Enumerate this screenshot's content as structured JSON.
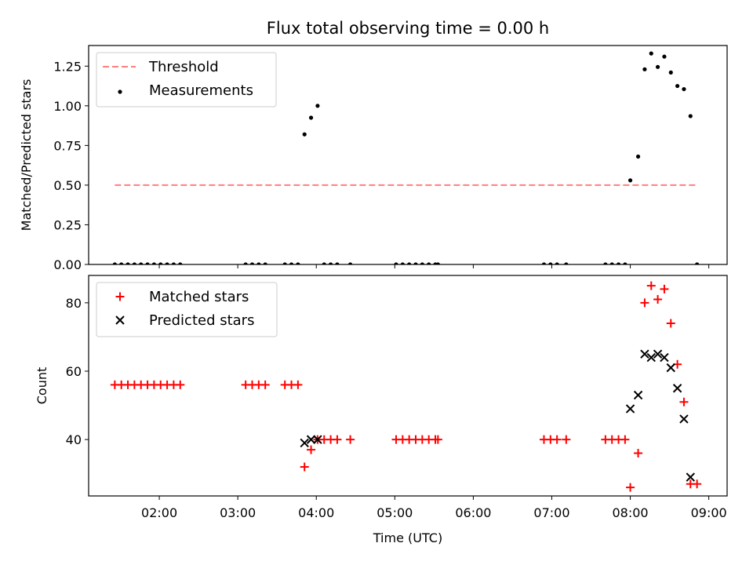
{
  "figure": {
    "title": "Flux total observing time = 0.00 h",
    "xlabel": "Time (UTC)"
  },
  "chart_data": [
    {
      "type": "scatter",
      "title": "Flux total observing time = 0.00 h",
      "ylabel": "Matched/Predicted stars",
      "xlim": [
        "01:06",
        "09:14"
      ],
      "ylim": [
        0,
        1.38
      ],
      "yticks": [
        0.0,
        0.25,
        0.5,
        0.75,
        1.0,
        1.25
      ],
      "ytick_labels": [
        "0.00",
        "0.25",
        "0.50",
        "0.75",
        "1.00",
        "1.25"
      ],
      "grid": false,
      "legend": {
        "position": "top-left",
        "entries": [
          "Threshold",
          "Measurements"
        ]
      },
      "series": [
        {
          "name": "Threshold",
          "kind": "dashed-line",
          "color": "#ff7f7f",
          "x": [
            "01:26",
            "08:50"
          ],
          "y": [
            0.5,
            0.5
          ]
        },
        {
          "name": "Measurements",
          "kind": "scatter",
          "color": "#000000",
          "x": [
            "01:26",
            "01:31",
            "01:36",
            "01:41",
            "01:46",
            "01:51",
            "01:56",
            "02:01",
            "02:06",
            "02:11",
            "02:16",
            "03:06",
            "03:11",
            "03:16",
            "03:21",
            "03:36",
            "03:41",
            "03:46",
            "03:51",
            "03:56",
            "04:01",
            "04:06",
            "04:11",
            "04:16",
            "04:26",
            "05:01",
            "05:06",
            "05:11",
            "05:16",
            "05:21",
            "05:26",
            "05:31",
            "05:33",
            "06:54",
            "06:59",
            "07:04",
            "07:11",
            "07:41",
            "07:46",
            "07:51",
            "07:56",
            "08:00",
            "08:06",
            "08:11",
            "08:16",
            "08:21",
            "08:26",
            "08:31",
            "08:36",
            "08:41",
            "08:46",
            "08:51"
          ],
          "y": [
            0,
            0,
            0,
            0,
            0,
            0,
            0,
            0,
            0,
            0,
            0,
            0,
            0,
            0,
            0,
            0,
            0,
            0,
            0.82,
            0.925,
            1.0,
            0,
            0,
            0,
            0,
            0,
            0,
            0,
            0,
            0,
            0,
            0,
            0,
            0,
            0,
            0,
            0,
            0,
            0,
            0,
            0,
            0.53,
            0.68,
            1.23,
            1.33,
            1.245,
            1.31,
            1.21,
            1.125,
            1.105,
            0.935,
            0
          ]
        }
      ]
    },
    {
      "type": "scatter",
      "ylabel": "Count",
      "xlabel": "Time (UTC)",
      "xlim": [
        "01:06",
        "09:14"
      ],
      "ylim": [
        23.5,
        88
      ],
      "yticks": [
        40,
        60,
        80
      ],
      "ytick_labels": [
        "40",
        "60",
        "80"
      ],
      "xticks": [
        "02:00",
        "03:00",
        "04:00",
        "05:00",
        "06:00",
        "07:00",
        "08:00",
        "09:00"
      ],
      "xtick_labels": [
        "02:00",
        "03:00",
        "04:00",
        "05:00",
        "06:00",
        "07:00",
        "08:00",
        "09:00"
      ],
      "grid": false,
      "legend": {
        "position": "top-left",
        "entries": [
          "Matched stars",
          "Predicted stars"
        ]
      },
      "series": [
        {
          "name": "Matched stars",
          "marker": "plus",
          "color": "#ff0000",
          "x": [
            "01:26",
            "01:31",
            "01:36",
            "01:41",
            "01:46",
            "01:51",
            "01:56",
            "02:01",
            "02:06",
            "02:11",
            "02:16",
            "03:06",
            "03:11",
            "03:16",
            "03:21",
            "03:36",
            "03:41",
            "03:46",
            "03:51",
            "03:56",
            "04:01",
            "04:06",
            "04:11",
            "04:16",
            "04:26",
            "05:01",
            "05:06",
            "05:11",
            "05:16",
            "05:21",
            "05:26",
            "05:31",
            "05:33",
            "06:54",
            "06:59",
            "07:04",
            "07:11",
            "07:41",
            "07:46",
            "07:51",
            "07:56",
            "08:00",
            "08:06",
            "08:11",
            "08:16",
            "08:21",
            "08:26",
            "08:31",
            "08:36",
            "08:41",
            "08:46",
            "08:51"
          ],
          "y": [
            56,
            56,
            56,
            56,
            56,
            56,
            56,
            56,
            56,
            56,
            56,
            56,
            56,
            56,
            56,
            56,
            56,
            56,
            32,
            37,
            40,
            40,
            40,
            40,
            40,
            40,
            40,
            40,
            40,
            40,
            40,
            40,
            40,
            40,
            40,
            40,
            40,
            40,
            40,
            40,
            40,
            26,
            36,
            80,
            85,
            81,
            84,
            74,
            62,
            51,
            27,
            27
          ]
        },
        {
          "name": "Predicted stars",
          "marker": "x",
          "color": "#000000",
          "x": [
            "03:51",
            "03:56",
            "04:01",
            "08:00",
            "08:06",
            "08:11",
            "08:16",
            "08:21",
            "08:26",
            "08:31",
            "08:36",
            "08:41",
            "08:46"
          ],
          "y": [
            39,
            40,
            40,
            49,
            53,
            65,
            64,
            65,
            64,
            61,
            55,
            46,
            29
          ]
        }
      ]
    }
  ]
}
